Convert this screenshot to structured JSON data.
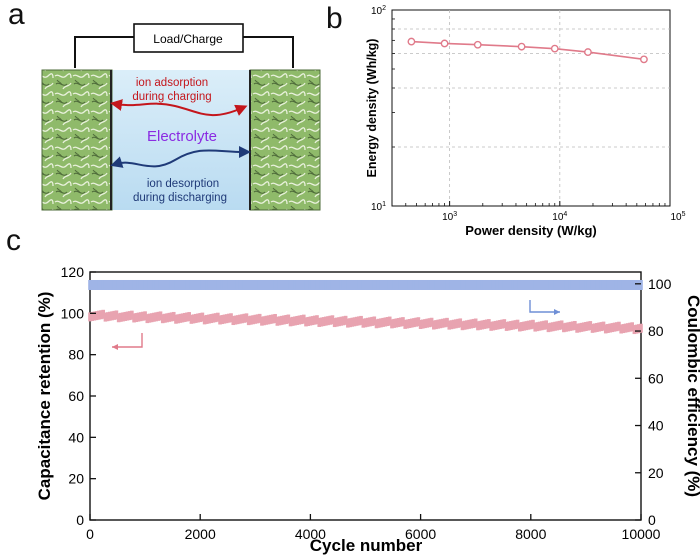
{
  "panels": {
    "a": "a",
    "b": "b",
    "c": "c"
  },
  "schematic": {
    "load_label": "Load/Charge",
    "electrolyte_label": "Electrolyte",
    "adsorption_line1": "ion adsorption",
    "adsorption_line2": "during charging",
    "desorption_line1": "ion desorption",
    "desorption_line2": "during discharging",
    "colors": {
      "electrode": "#8fba6a",
      "electrolyte": "#cfe6f5",
      "adsorption": "#c4161c",
      "desorption": "#1f3a78",
      "electrolyte_text": "#8a2be2"
    }
  },
  "chart_data": [
    {
      "type": "line",
      "title": "",
      "xlabel": "Power density (W/kg)",
      "ylabel": "Energy density (Wh/kg)",
      "xscale": "log",
      "yscale": "log",
      "xlim": [
        300,
        100000
      ],
      "ylim": [
        10,
        100
      ],
      "x_ticks": [
        {
          "base": "10",
          "exp": "3"
        },
        {
          "base": "10",
          "exp": "4"
        },
        {
          "base": "10",
          "exp": "5"
        }
      ],
      "y_ticks": [
        {
          "base": "10",
          "exp": "1"
        },
        {
          "base": "10",
          "exp": "2"
        }
      ],
      "series": [
        {
          "name": "Energy density",
          "color": "#e07a8a",
          "x": [
            450,
            900,
            1800,
            4500,
            9000,
            18000,
            58000
          ],
          "y": [
            69,
            67.5,
            66.5,
            65,
            63.5,
            61,
            56
          ]
        }
      ]
    },
    {
      "type": "scatter",
      "title": "",
      "xlabel": "Cycle number",
      "ylabel": "Capacitance retention (%)",
      "y2label": "Coulombic efficiency (%)",
      "xlim": [
        0,
        10000
      ],
      "ylim": [
        0,
        120
      ],
      "y2lim": [
        0,
        105
      ],
      "x_ticks": [
        "0",
        "2000",
        "4000",
        "6000",
        "8000",
        "10000"
      ],
      "y_ticks": [
        "0",
        "20",
        "40",
        "60",
        "80",
        "100",
        "120"
      ],
      "y2_ticks": [
        "0",
        "20",
        "40",
        "60",
        "80",
        "100"
      ],
      "series": [
        {
          "name": "Capacitance retention",
          "axis": "left",
          "color": "#e8a3b0",
          "x": [
            0,
            500,
            1000,
            1500,
            2000,
            3000,
            4000,
            5000,
            6000,
            7000,
            8000,
            9000,
            10000
          ],
          "y": [
            99,
            98.6,
            98.2,
            97.9,
            97.6,
            97,
            96.4,
            95.8,
            95.2,
            94.6,
            94,
            93.4,
            92.8
          ]
        },
        {
          "name": "Coulombic efficiency",
          "axis": "right",
          "color": "#9fb4e6",
          "x": [
            0,
            2000,
            4000,
            6000,
            8000,
            10000
          ],
          "y": [
            99.5,
            99.5,
            99.5,
            99.5,
            99.5,
            99.5
          ]
        }
      ]
    }
  ]
}
